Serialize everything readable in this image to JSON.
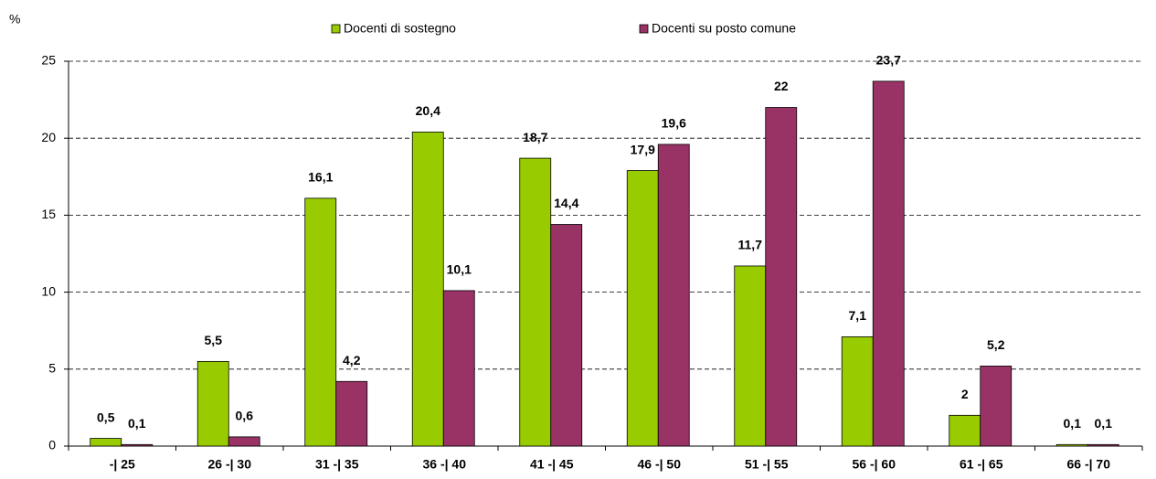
{
  "chart_data": {
    "type": "bar",
    "y_label": "%",
    "categories": [
      "-| 25",
      "26 -| 30",
      "31 -| 35",
      "36 -| 40",
      "41 -| 45",
      "46 -| 50",
      "51 -| 55",
      "56 -| 60",
      "61 -| 65",
      "66 -| 70"
    ],
    "series": [
      {
        "name": "Docenti di sostegno",
        "color": "#99cc00",
        "values": [
          0.5,
          5.5,
          16.1,
          20.4,
          18.7,
          17.9,
          11.7,
          7.1,
          2,
          0.1
        ],
        "value_labels": [
          "0,5",
          "5,5",
          "16,1",
          "20,4",
          "18,7",
          "17,9",
          "11,7",
          "7,1",
          "2",
          "0,1"
        ]
      },
      {
        "name": "Docenti su posto comune",
        "color": "#993366",
        "values": [
          0.1,
          0.6,
          4.2,
          10.1,
          14.4,
          19.6,
          22,
          23.7,
          5.2,
          0.1
        ],
        "value_labels": [
          "0,1",
          "0,6",
          "4,2",
          "10,1",
          "14,4",
          "19,6",
          "22",
          "23,7",
          "5,2",
          "0,1"
        ]
      }
    ],
    "ylim": [
      0,
      25
    ],
    "yticks": [
      0,
      5,
      10,
      15,
      20,
      25
    ],
    "grid": true
  }
}
